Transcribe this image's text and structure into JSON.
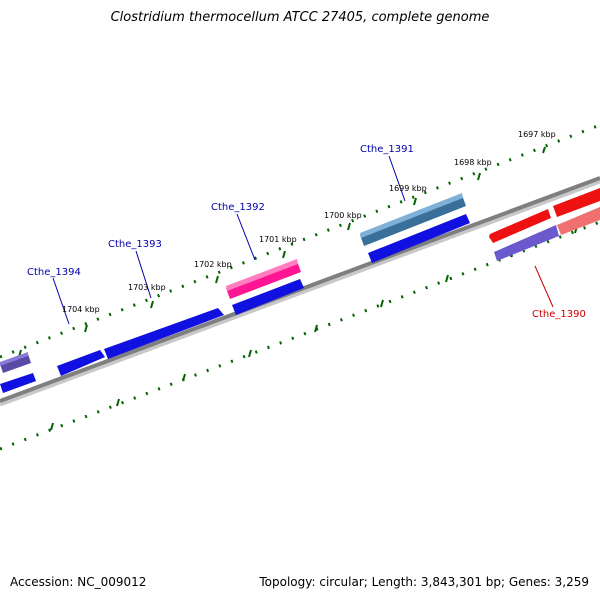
{
  "title": "Clostridium thermocellum ATCC 27405, complete genome",
  "footer": {
    "accession": "Accession: NC_009012",
    "summary": "Topology: circular; Length: 3,843,301 bp; Genes: 3,259"
  },
  "colors": {
    "backbone": "#7f7f7f",
    "tick": "#006400",
    "label_forward": "#0000aa",
    "label_reverse": "#cc0000",
    "gene_blue": "#1010e0",
    "gene_slate": "#6a5acd",
    "gene_steel": "#4682b4",
    "gene_pink": "#ff1493",
    "gene_red": "#ee1111",
    "gene_lightred": "#f07070"
  },
  "ruler": {
    "labels": [
      "1697 kbp",
      "1698 kbp",
      "1699 kbp",
      "1700 kbp",
      "1701 kbp",
      "1702 kbp",
      "1703 kbp",
      "1704 kbp"
    ]
  },
  "gene_labels": [
    {
      "text": "Cthe_1391",
      "strand": "forward"
    },
    {
      "text": "Cthe_1392",
      "strand": "forward"
    },
    {
      "text": "Cthe_1393",
      "strand": "forward"
    },
    {
      "text": "Cthe_1394",
      "strand": "forward"
    },
    {
      "text": "Cthe_1390",
      "strand": "reverse"
    }
  ]
}
